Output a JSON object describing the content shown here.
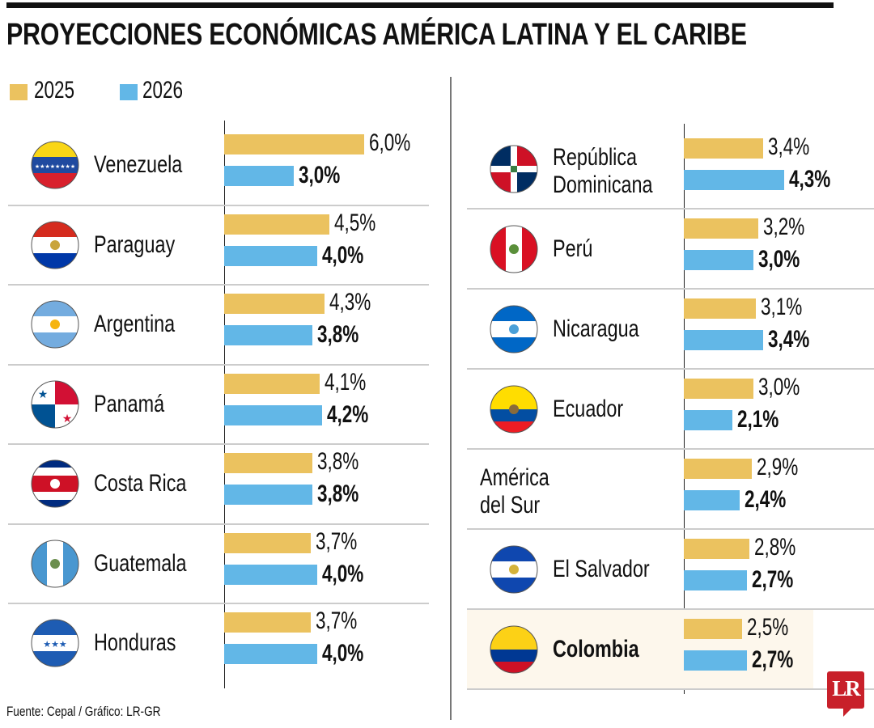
{
  "title": "PROYECCIONES ECONÓMICAS AMÉRICA LATINA Y EL CARIBE",
  "footer": "Fuente: Cepal / Gráfico: LR-GR",
  "logo": "LR",
  "colors": {
    "2025": "#ebc25f",
    "2026": "#62b7e7",
    "highlight_bg": "#fdf7ec",
    "logo_red": "#c8202a"
  },
  "chart_data": {
    "type": "bar",
    "orientation": "horizontal",
    "unit": "%",
    "legend": {
      "placement": "top-left",
      "entries": [
        "2025",
        "2026"
      ]
    },
    "series": [
      {
        "name": "2025"
      },
      {
        "name": "2026"
      }
    ],
    "left_column": [
      {
        "name": "Venezuela",
        "flag_icon": "venezuela-flag",
        "v2025": 6.0,
        "v2026": 3.0,
        "l2025": "6,0%",
        "l2026": "3,0%"
      },
      {
        "name": "Paraguay",
        "flag_icon": "paraguay-flag",
        "v2025": 4.5,
        "v2026": 4.0,
        "l2025": "4,5%",
        "l2026": "4,0%"
      },
      {
        "name": "Argentina",
        "flag_icon": "argentina-flag",
        "v2025": 4.3,
        "v2026": 3.8,
        "l2025": "4,3%",
        "l2026": "3,8%"
      },
      {
        "name": "Panamá",
        "flag_icon": "panama-flag",
        "v2025": 4.1,
        "v2026": 4.2,
        "l2025": "4,1%",
        "l2026": "4,2%"
      },
      {
        "name": "Costa Rica",
        "flag_icon": "costa-rica-flag",
        "v2025": 3.8,
        "v2026": 3.8,
        "l2025": "3,8%",
        "l2026": "3,8%"
      },
      {
        "name": "Guatemala",
        "flag_icon": "guatemala-flag",
        "v2025": 3.7,
        "v2026": 4.0,
        "l2025": "3,7%",
        "l2026": "4,0%"
      },
      {
        "name": "Honduras",
        "flag_icon": "honduras-flag",
        "v2025": 3.7,
        "v2026": 4.0,
        "l2025": "3,7%",
        "l2026": "4,0%"
      }
    ],
    "right_column": [
      {
        "name": "República\nDominicana",
        "flag_icon": "dominican-republic-flag",
        "v2025": 3.4,
        "v2026": 4.3,
        "l2025": "3,4%",
        "l2026": "4,3%"
      },
      {
        "name": "Perú",
        "flag_icon": "peru-flag",
        "v2025": 3.2,
        "v2026": 3.0,
        "l2025": "3,2%",
        "l2026": "3,0%"
      },
      {
        "name": "Nicaragua",
        "flag_icon": "nicaragua-flag",
        "v2025": 3.1,
        "v2026": 3.4,
        "l2025": "3,1%",
        "l2026": "3,4%"
      },
      {
        "name": "Ecuador",
        "flag_icon": "ecuador-flag",
        "v2025": 3.0,
        "v2026": 2.1,
        "l2025": "3,0%",
        "l2026": "2,1%"
      },
      {
        "name": "América\ndel Sur",
        "flag_icon": "",
        "v2025": 2.9,
        "v2026": 2.4,
        "l2025": "2,9%",
        "l2026": "2,4%"
      },
      {
        "name": "El Salvador",
        "flag_icon": "el-salvador-flag",
        "v2025": 2.8,
        "v2026": 2.7,
        "l2025": "2,8%",
        "l2026": "2,7%"
      },
      {
        "name": "Colombia",
        "flag_icon": "colombia-flag",
        "v2025": 2.5,
        "v2026": 2.7,
        "l2025": "2,5%",
        "l2026": "2,7%",
        "highlighted": true
      }
    ]
  }
}
